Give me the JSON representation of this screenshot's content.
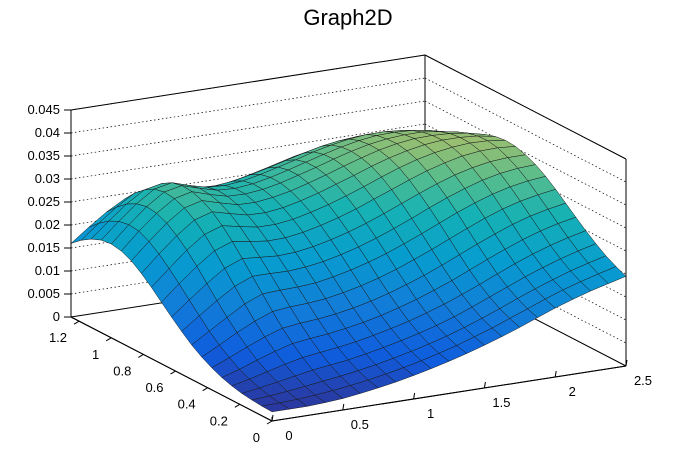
{
  "chart_data": {
    "type": "surface",
    "title": "Graph2D",
    "xlabel": "",
    "ylabel": "",
    "zlabel": "",
    "xlim": [
      0,
      2.5
    ],
    "ylim": [
      0,
      1.25
    ],
    "zlim": [
      0,
      0.045
    ],
    "x_ticks": [
      "0",
      "0.5",
      "1",
      "1.5",
      "2",
      "2.5"
    ],
    "y_ticks": [
      "0",
      "0.2",
      "0.4",
      "0.6",
      "0.8",
      "1",
      "1.2"
    ],
    "z_ticks": [
      "0",
      "0.005",
      "0.01",
      "0.015",
      "0.02",
      "0.025",
      "0.03",
      "0.035",
      "0.04",
      "0.045"
    ],
    "grid": true,
    "colormap": "parula",
    "colors": {
      "low": "#352a87",
      "mid": "#21a9a0",
      "high": "#f9fb0e"
    },
    "x": [
      0.0,
      0.125,
      0.25,
      0.375,
      0.5,
      0.625,
      0.75,
      0.875,
      1.0,
      1.125,
      1.25,
      1.375,
      1.5,
      1.625,
      1.75,
      1.875,
      2.0,
      2.125,
      2.25,
      2.375,
      2.5
    ],
    "y": [
      0.0,
      0.0625,
      0.125,
      0.1875,
      0.25,
      0.3125,
      0.375,
      0.4375,
      0.5,
      0.5625,
      0.625,
      0.6875,
      0.75,
      0.8125,
      0.875,
      0.9375,
      1.0,
      1.0625,
      1.125,
      1.1875,
      1.25
    ],
    "z": [
      [
        0.002,
        0.002,
        0.002,
        0.0022,
        0.0025,
        0.003,
        0.0036,
        0.0043,
        0.0051,
        0.006,
        0.007,
        0.0081,
        0.0093,
        0.0106,
        0.012,
        0.0135,
        0.015,
        0.0163,
        0.0175,
        0.0185,
        0.0195
      ],
      [
        0.0021,
        0.0022,
        0.0024,
        0.0027,
        0.0031,
        0.0036,
        0.0042,
        0.0049,
        0.0057,
        0.0066,
        0.0076,
        0.0087,
        0.01,
        0.0113,
        0.0128,
        0.0143,
        0.0158,
        0.0172,
        0.0184,
        0.0195,
        0.0205
      ],
      [
        0.0023,
        0.0026,
        0.003,
        0.0035,
        0.004,
        0.0045,
        0.0051,
        0.0058,
        0.0066,
        0.0075,
        0.0085,
        0.0096,
        0.0109,
        0.0123,
        0.0138,
        0.0154,
        0.0169,
        0.0183,
        0.0196,
        0.0207,
        0.0217
      ],
      [
        0.0026,
        0.0032,
        0.0039,
        0.0046,
        0.0053,
        0.0058,
        0.0063,
        0.007,
        0.0078,
        0.0087,
        0.0097,
        0.0108,
        0.0121,
        0.0136,
        0.0152,
        0.0168,
        0.0184,
        0.0198,
        0.0211,
        0.0222,
        0.0232
      ],
      [
        0.0031,
        0.004,
        0.005,
        0.006,
        0.0069,
        0.0074,
        0.0079,
        0.0085,
        0.0093,
        0.0102,
        0.0112,
        0.0124,
        0.0137,
        0.0152,
        0.0168,
        0.0185,
        0.0201,
        0.0216,
        0.0229,
        0.024,
        0.0249
      ],
      [
        0.0038,
        0.005,
        0.0064,
        0.0077,
        0.0088,
        0.0093,
        0.0097,
        0.0103,
        0.011,
        0.0119,
        0.013,
        0.0142,
        0.0156,
        0.0171,
        0.0188,
        0.0205,
        0.0221,
        0.0236,
        0.0249,
        0.0259,
        0.0267
      ],
      [
        0.0048,
        0.0064,
        0.0081,
        0.0097,
        0.011,
        0.0115,
        0.0118,
        0.0123,
        0.013,
        0.0139,
        0.015,
        0.0163,
        0.0177,
        0.0193,
        0.021,
        0.0227,
        0.0243,
        0.0258,
        0.027,
        0.0279,
        0.0286
      ],
      [
        0.006,
        0.008,
        0.0101,
        0.012,
        0.0135,
        0.0139,
        0.0141,
        0.0145,
        0.0152,
        0.0161,
        0.0172,
        0.0185,
        0.02,
        0.0216,
        0.0233,
        0.025,
        0.0266,
        0.028,
        0.0291,
        0.0299,
        0.0305
      ],
      [
        0.0075,
        0.0099,
        0.0123,
        0.0146,
        0.0162,
        0.0164,
        0.0165,
        0.0168,
        0.0175,
        0.0184,
        0.0195,
        0.0208,
        0.0223,
        0.0239,
        0.0256,
        0.0273,
        0.0288,
        0.0301,
        0.0311,
        0.0318,
        0.0322
      ],
      [
        0.0093,
        0.0121,
        0.0148,
        0.0173,
        0.0189,
        0.0189,
        0.0188,
        0.0191,
        0.0197,
        0.0206,
        0.0217,
        0.023,
        0.0245,
        0.0261,
        0.0278,
        0.0294,
        0.0308,
        0.032,
        0.0329,
        0.0334,
        0.0336
      ],
      [
        0.0113,
        0.0144,
        0.0174,
        0.0201,
        0.0216,
        0.0213,
        0.021,
        0.0212,
        0.0218,
        0.0227,
        0.0238,
        0.0251,
        0.0266,
        0.0282,
        0.0298,
        0.0313,
        0.0326,
        0.0336,
        0.0343,
        0.0346,
        0.0346
      ],
      [
        0.0134,
        0.0168,
        0.02,
        0.0228,
        0.0242,
        0.0236,
        0.0231,
        0.0232,
        0.0238,
        0.0247,
        0.0258,
        0.0271,
        0.0286,
        0.0301,
        0.0316,
        0.033,
        0.0341,
        0.035,
        0.0355,
        0.0356,
        0.0353
      ],
      [
        0.0155,
        0.019,
        0.0224,
        0.0252,
        0.0265,
        0.0257,
        0.025,
        0.025,
        0.0255,
        0.0264,
        0.0275,
        0.0288,
        0.0302,
        0.0317,
        0.0331,
        0.0343,
        0.0352,
        0.0358,
        0.0361,
        0.036,
        0.0355
      ],
      [
        0.0174,
        0.021,
        0.0244,
        0.0272,
        0.0284,
        0.0274,
        0.0265,
        0.0264,
        0.0269,
        0.0278,
        0.0289,
        0.0302,
        0.0315,
        0.0329,
        0.0341,
        0.0351,
        0.0358,
        0.0362,
        0.0362,
        0.0359,
        0.0352
      ],
      [
        0.019,
        0.0226,
        0.026,
        0.0287,
        0.0297,
        0.0286,
        0.0276,
        0.0275,
        0.028,
        0.0288,
        0.0299,
        0.0311,
        0.0324,
        0.0336,
        0.0347,
        0.0355,
        0.036,
        0.0361,
        0.0359,
        0.0354,
        0.0345
      ],
      [
        0.02,
        0.0237,
        0.027,
        0.0296,
        0.0305,
        0.0293,
        0.0283,
        0.0282,
        0.0286,
        0.0294,
        0.0305,
        0.0316,
        0.0328,
        0.0339,
        0.0348,
        0.0354,
        0.0357,
        0.0357,
        0.0352,
        0.0345,
        0.0334
      ],
      [
        0.0204,
        0.024,
        0.0273,
        0.0299,
        0.0307,
        0.0295,
        0.0285,
        0.0283,
        0.0287,
        0.0295,
        0.0305,
        0.0316,
        0.0327,
        0.0337,
        0.0345,
        0.035,
        0.0351,
        0.0349,
        0.0343,
        0.0334,
        0.0321
      ],
      [
        0.0201,
        0.0236,
        0.0268,
        0.0294,
        0.0302,
        0.029,
        0.028,
        0.0278,
        0.0282,
        0.029,
        0.03,
        0.031,
        0.0321,
        0.033,
        0.0337,
        0.0341,
        0.0341,
        0.0338,
        0.0331,
        0.0321,
        0.0308
      ],
      [
        0.0192,
        0.0225,
        0.0256,
        0.0281,
        0.0289,
        0.0277,
        0.0268,
        0.0266,
        0.027,
        0.0278,
        0.0287,
        0.0297,
        0.0307,
        0.0316,
        0.0322,
        0.0325,
        0.0325,
        0.0321,
        0.0313,
        0.0303,
        0.029
      ],
      [
        0.0178,
        0.0209,
        0.0238,
        0.0262,
        0.0269,
        0.0258,
        0.0249,
        0.0248,
        0.0252,
        0.0259,
        0.0268,
        0.0278,
        0.0288,
        0.0296,
        0.0302,
        0.0304,
        0.0303,
        0.0299,
        0.0291,
        0.0281,
        0.0268
      ],
      [
        0.016,
        0.0189,
        0.0216,
        0.0238,
        0.0245,
        0.0235,
        0.0227,
        0.0226,
        0.023,
        0.0237,
        0.0246,
        0.0255,
        0.0264,
        0.0272,
        0.0277,
        0.0279,
        0.0278,
        0.0273,
        0.0265,
        0.0255,
        0.0243
      ]
    ]
  }
}
